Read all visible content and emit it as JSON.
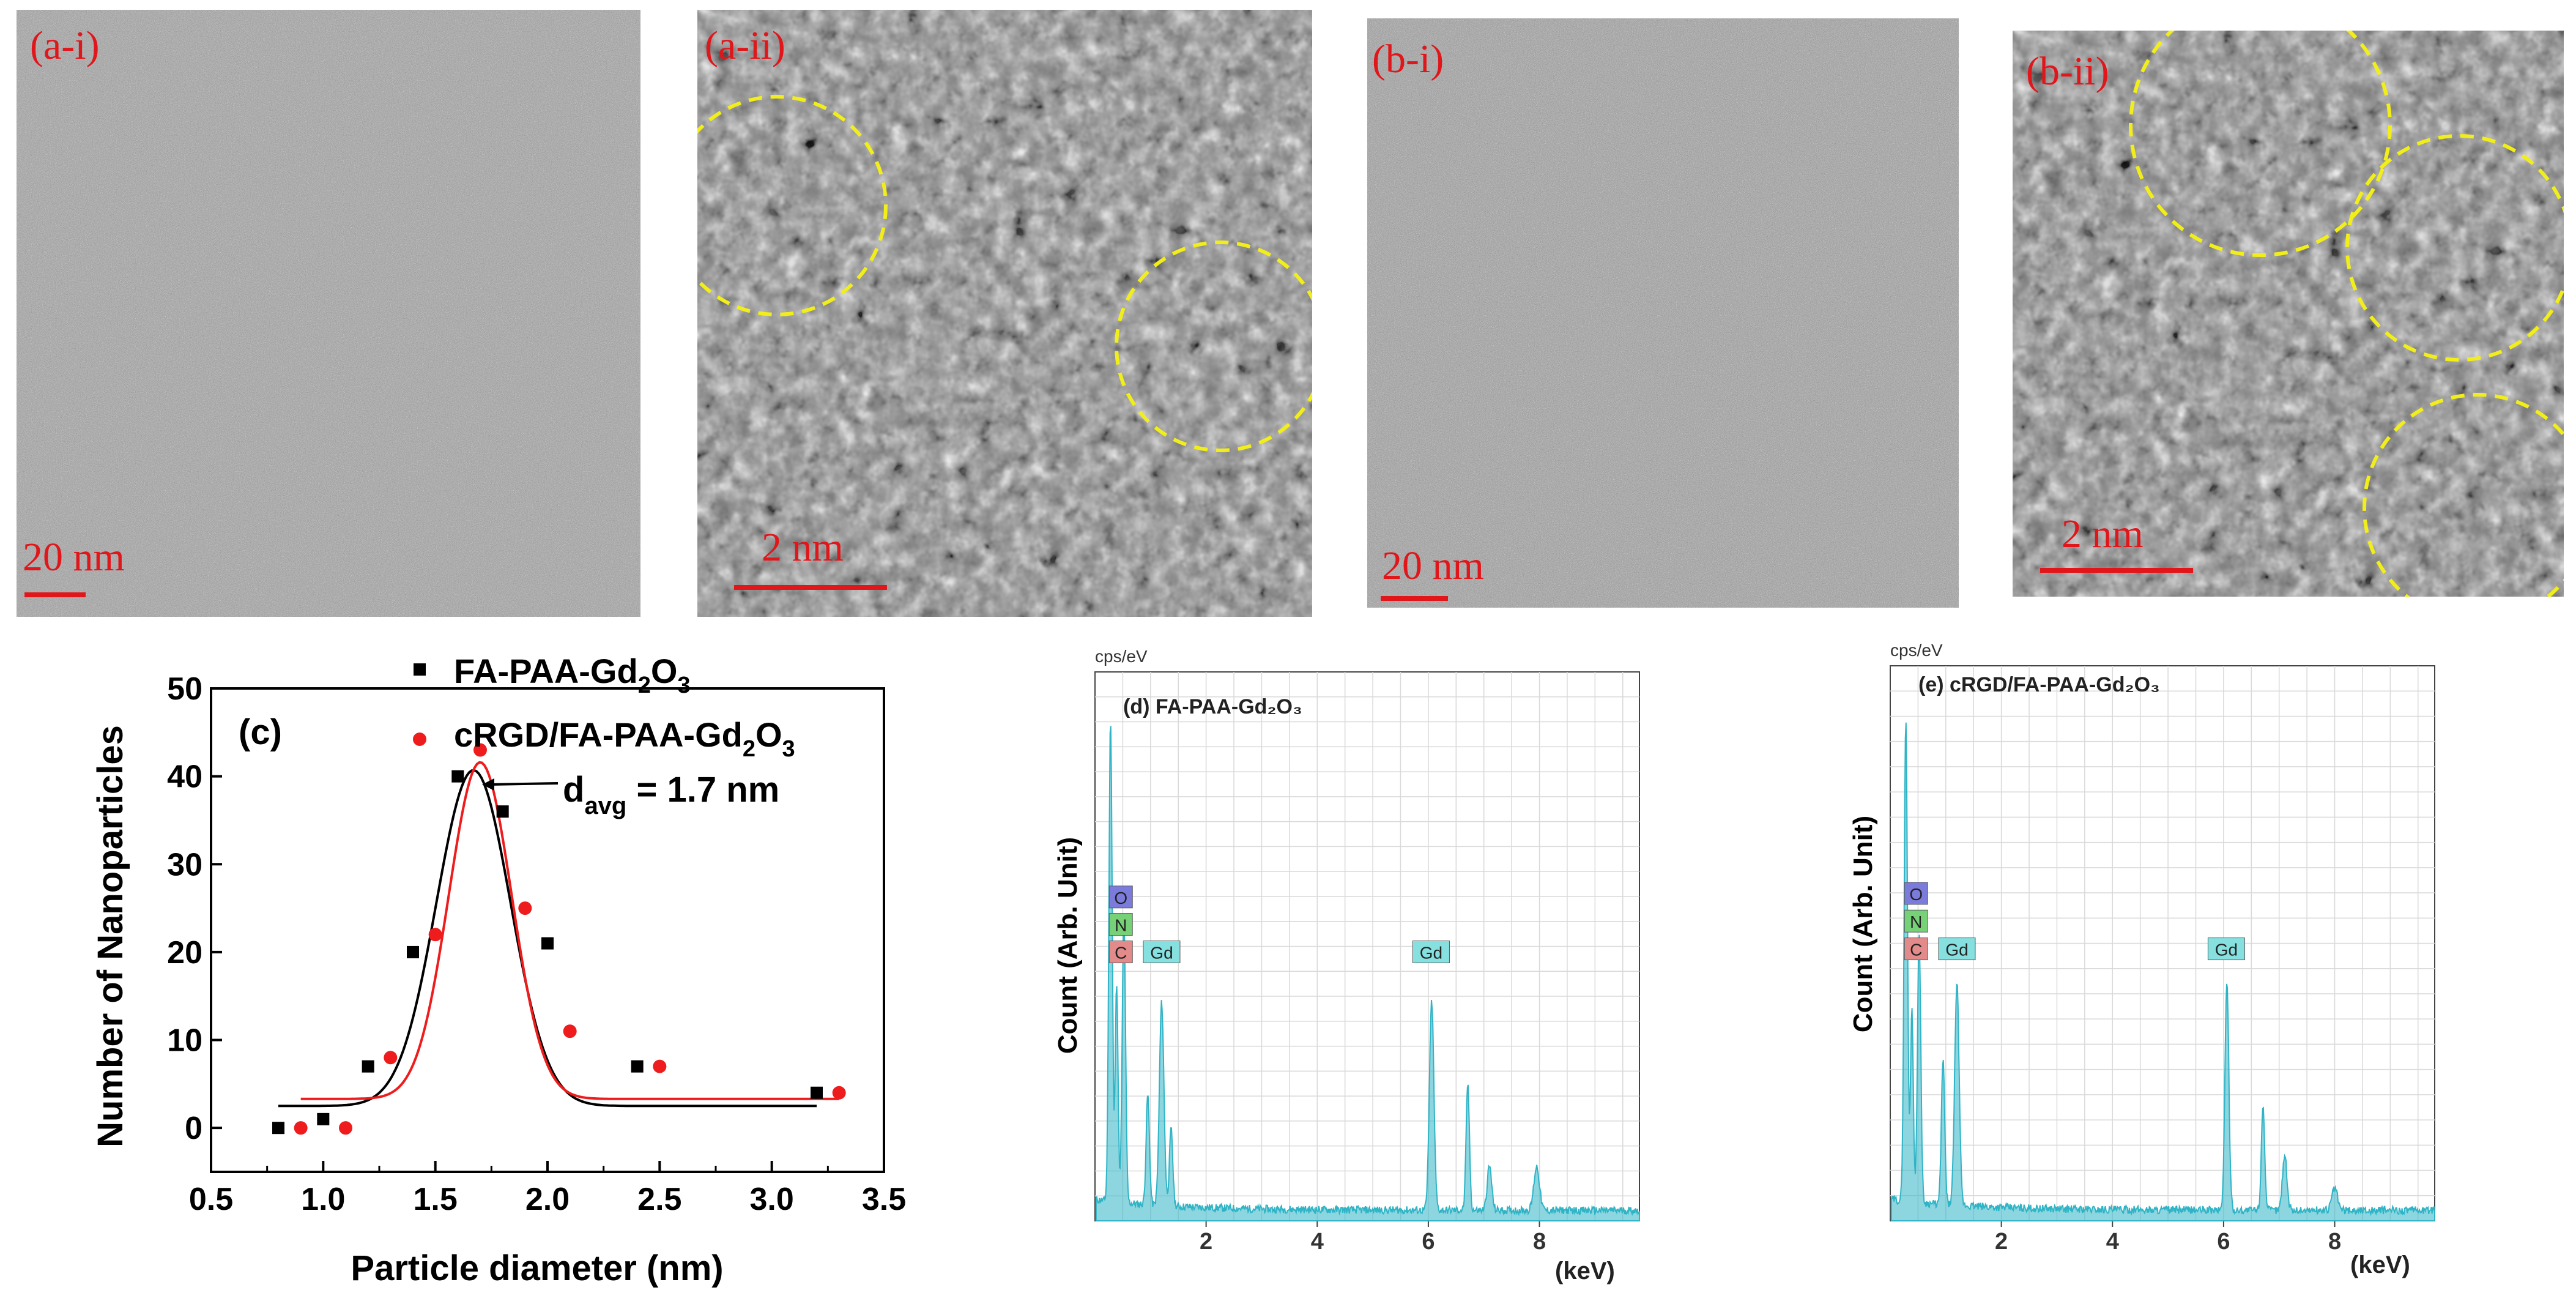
{
  "figure": {
    "accent_red": "#e0161b",
    "accent_yellow": "#f2ee1a",
    "eds_line": "#2fb4c6",
    "series_colors": [
      "#000000",
      "#ee1c1c"
    ]
  },
  "tem_panels": [
    {
      "label": "(a-i)",
      "scale": "20 nm"
    },
    {
      "label": "(a-ii)",
      "scale": "2 nm"
    },
    {
      "label": "(b-i)",
      "scale": "20 nm"
    },
    {
      "label": "(b-ii)",
      "scale": "2 nm"
    }
  ],
  "eds_panels": [
    {
      "panel_label": "(d) FA-PAA-Gd₂O₃",
      "unit": "cps/eV",
      "ylabel": "Count (Arb. Unit)",
      "xunit": "(keV)",
      "xticks": [
        "2",
        "4",
        "6",
        "8"
      ],
      "elements": [
        "O",
        "N",
        "C",
        "Gd",
        "Gd"
      ]
    },
    {
      "panel_label": "(e) cRGD/FA-PAA-Gd₂O₃",
      "unit": "cps/eV",
      "ylabel": "Count (Arb. Unit)",
      "xunit": "(keV)",
      "xticks": [
        "2",
        "4",
        "6",
        "8"
      ],
      "elements": [
        "O",
        "N",
        "C",
        "Gd",
        "Gd"
      ]
    }
  ],
  "chart_data": {
    "type": "scatter",
    "panel_label": "(c)",
    "xlabel": "Particle diameter (nm)",
    "ylabel": "Number of Nanoparticles",
    "xlim": [
      0.5,
      3.5
    ],
    "ylim": [
      -5,
      50
    ],
    "xticks": [
      "0.5",
      "1.0",
      "1.5",
      "2.0",
      "2.5",
      "3.0",
      "3.5"
    ],
    "yticks": [
      "0",
      "10",
      "20",
      "30",
      "40",
      "50"
    ],
    "annotation": {
      "main": "d",
      "sub": "avg",
      "rest": " = 1.7 nm"
    },
    "series": [
      {
        "name": "FA-PAA-Gd2O3",
        "legend": {
          "p1": "FA-PAA-Gd",
          "s1": "2",
          "p2": "O",
          "s2": "3"
        },
        "marker": "square",
        "x": [
          0.8,
          1.0,
          1.2,
          1.4,
          1.6,
          1.8,
          2.0,
          2.4,
          3.2
        ],
        "y": [
          0,
          1,
          7,
          20,
          40,
          36,
          21,
          7,
          4
        ],
        "fit": {
          "y0": 2.5,
          "A": 38.2,
          "xc": 1.67,
          "sigma": 0.165
        }
      },
      {
        "name": "cRGD/FA-PAA-Gd2O3",
        "legend": {
          "p1": "cRGD/FA-PAA-Gd",
          "s1": "2",
          "p2": "O",
          "s2": "3"
        },
        "marker": "circle",
        "x": [
          0.9,
          1.1,
          1.3,
          1.5,
          1.7,
          1.9,
          2.1,
          2.5,
          3.3
        ],
        "y": [
          0,
          0,
          8,
          22,
          43,
          25,
          11,
          7,
          4
        ],
        "fit": {
          "y0": 3.3,
          "A": 38.3,
          "xc": 1.7,
          "sigma": 0.14
        }
      }
    ]
  }
}
